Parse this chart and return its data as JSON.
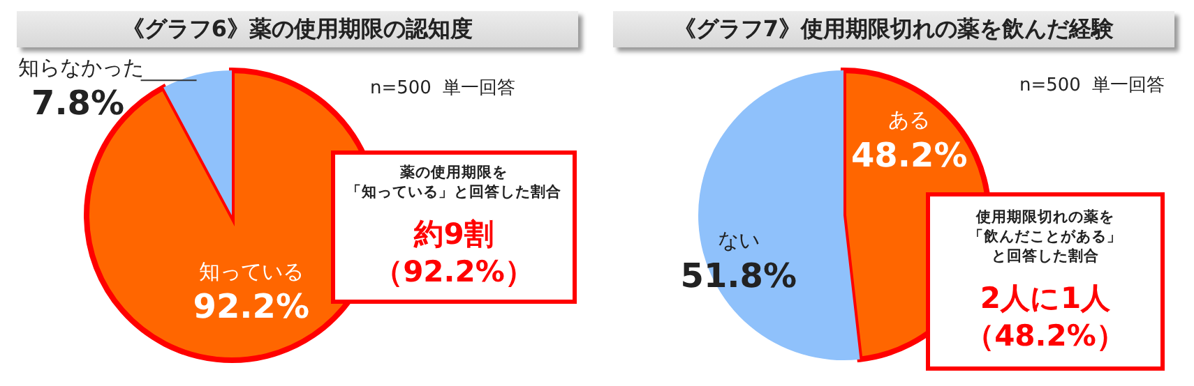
{
  "chart_data": [
    {
      "type": "pie",
      "title": "《グラフ6》薬の使用期限の認知度",
      "subtitle": "n=500  単一回答",
      "categories": [
        "知っている",
        "知らなかった"
      ],
      "values": [
        92.2,
        7.8
      ],
      "value_labels": [
        "92.2%",
        "7.8%"
      ],
      "colors": [
        "#ff6600",
        "#8fc1fb"
      ],
      "legend": false,
      "annotations": [
        "薬の使用期限を",
        "「知っている」と回答した割合",
        "約9割",
        "（92.2%）"
      ]
    },
    {
      "type": "pie",
      "title": "《グラフ7》使用期限切れの薬を飲んだ経験",
      "subtitle": "n=500  単一回答",
      "categories": [
        "ある",
        "ない"
      ],
      "values": [
        48.2,
        51.8
      ],
      "value_labels": [
        "48.2%",
        "51.8%"
      ],
      "colors": [
        "#ff6600",
        "#8fc1fb"
      ],
      "legend": false,
      "annotations": [
        "使用期限切れの薬を",
        "「飲んだことがある」",
        "と回答した割合",
        "2人に1人",
        "（48.2%）"
      ]
    }
  ]
}
